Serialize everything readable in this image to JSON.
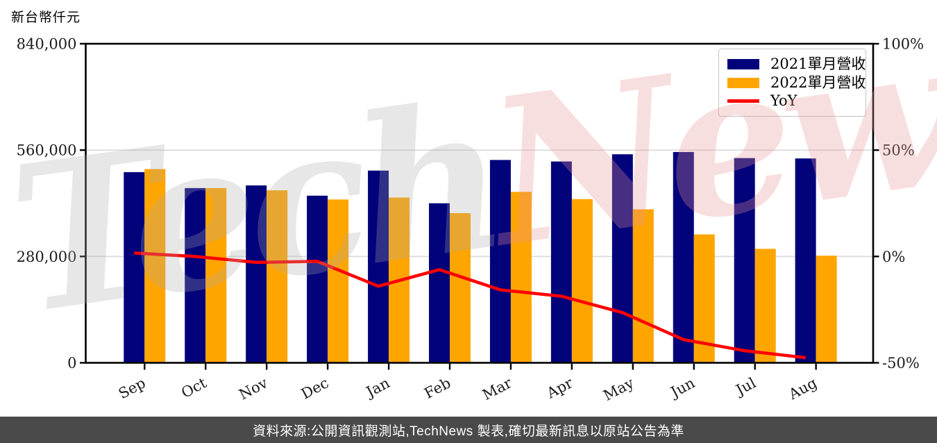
{
  "title": "新台幣仟元",
  "watermark": {
    "part1": "Tech",
    "part2": "News"
  },
  "caption": {
    "text": "資料來源:公開資訊觀測站,TechNews 製表,確切最新訊息以原站公告為準",
    "background": "#4a4a4a",
    "text_color": "#ffffff"
  },
  "legend": {
    "position": "top-right",
    "items": [
      {
        "label": "2021單月營收",
        "color": "#02027b",
        "type": "box"
      },
      {
        "label": "2022單月營收",
        "color": "#ffa500",
        "type": "box"
      },
      {
        "label": "YoY",
        "color": "#ff0000",
        "type": "line"
      }
    ]
  },
  "chart_data": {
    "type": "bar",
    "subtype": "grouped-bars-with-line",
    "categories": [
      "Sep",
      "Oct",
      "Nov",
      "Dec",
      "Jan",
      "Feb",
      "Mar",
      "Apr",
      "May",
      "Jun",
      "Jul",
      "Aug"
    ],
    "series": [
      {
        "name": "2021單月營收",
        "axis": "left",
        "kind": "bar",
        "color": "#02027b",
        "values": [
          502000,
          460000,
          467000,
          440000,
          506000,
          420000,
          534000,
          530000,
          549000,
          555000,
          539000,
          538000
        ]
      },
      {
        "name": "2022單月營收",
        "axis": "left",
        "kind": "bar",
        "color": "#ffa500",
        "values": [
          510000,
          460000,
          454000,
          430000,
          435000,
          394000,
          450000,
          431000,
          404000,
          338000,
          300000,
          282000
        ]
      },
      {
        "name": "YoY",
        "axis": "right",
        "kind": "line",
        "color": "#ff0000",
        "values_pct": [
          1.6,
          0.0,
          -2.8,
          -2.3,
          -14.0,
          -6.2,
          -15.7,
          -18.7,
          -26.4,
          -39.1,
          -44.3,
          -47.6
        ]
      }
    ],
    "yaxis_left": {
      "label": "新台幣仟元",
      "min": 0,
      "max": 840000,
      "tick_values": [
        840000,
        560000,
        280000,
        0
      ],
      "tick_labels": [
        "840,000",
        "560,000",
        "280,000",
        "0"
      ]
    },
    "yaxis_right": {
      "min": -50,
      "max": 100,
      "tick_values": [
        100,
        50,
        0,
        -50
      ],
      "tick_labels": [
        "100%",
        "50%",
        "0%",
        "-50%"
      ]
    },
    "grid": "horizontal-light",
    "grid_color": "#d9d9d9",
    "frame_color": "#000000",
    "legend_position": "top-right"
  }
}
